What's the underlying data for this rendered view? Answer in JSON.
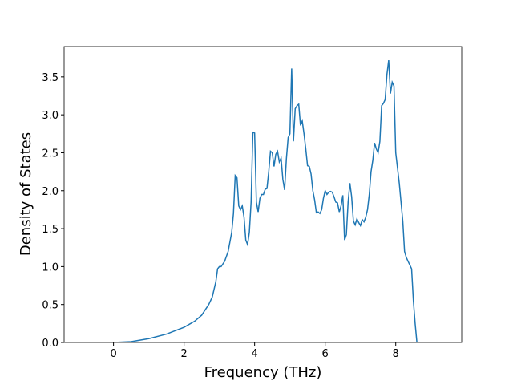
{
  "chart_data": {
    "type": "line",
    "xlabel": "Frequency (THz)",
    "ylabel": "Density of States",
    "x": [
      -0.89,
      0,
      0.5,
      1.0,
      1.5,
      2.0,
      2.3,
      2.5,
      2.7,
      2.8,
      2.9,
      2.95,
      3.0,
      3.05,
      3.15,
      3.25,
      3.35,
      3.4,
      3.45,
      3.5,
      3.55,
      3.6,
      3.65,
      3.7,
      3.75,
      3.8,
      3.85,
      3.9,
      3.95,
      4.0,
      4.05,
      4.1,
      4.15,
      4.2,
      4.25,
      4.3,
      4.35,
      4.4,
      4.45,
      4.5,
      4.55,
      4.6,
      4.65,
      4.7,
      4.75,
      4.8,
      4.85,
      4.9,
      4.95,
      5.0,
      5.05,
      5.1,
      5.15,
      5.2,
      5.25,
      5.3,
      5.35,
      5.4,
      5.45,
      5.5,
      5.55,
      5.6,
      5.65,
      5.7,
      5.75,
      5.8,
      5.85,
      5.9,
      5.95,
      6.0,
      6.05,
      6.1,
      6.15,
      6.2,
      6.25,
      6.3,
      6.35,
      6.4,
      6.45,
      6.5,
      6.55,
      6.6,
      6.65,
      6.7,
      6.75,
      6.8,
      6.85,
      6.9,
      6.95,
      7.0,
      7.05,
      7.1,
      7.15,
      7.2,
      7.25,
      7.3,
      7.35,
      7.4,
      7.45,
      7.5,
      7.55,
      7.6,
      7.65,
      7.7,
      7.75,
      7.8,
      7.85,
      7.9,
      7.95,
      8.0,
      8.1,
      8.2,
      8.25,
      8.3,
      8.35,
      8.4,
      8.45,
      8.5,
      8.55,
      8.6,
      9.36
    ],
    "series": [
      {
        "color": "#1f77b4",
        "values": [
          0,
          0,
          0.01,
          0.05,
          0.11,
          0.2,
          0.28,
          0.36,
          0.5,
          0.6,
          0.8,
          0.97,
          1.0,
          1.0,
          1.07,
          1.2,
          1.45,
          1.7,
          2.2,
          2.17,
          1.8,
          1.75,
          1.8,
          1.65,
          1.35,
          1.29,
          1.45,
          1.85,
          2.77,
          2.76,
          1.85,
          1.72,
          1.9,
          1.95,
          1.95,
          2.02,
          2.03,
          2.25,
          2.52,
          2.5,
          2.32,
          2.48,
          2.52,
          2.38,
          2.43,
          2.15,
          2.01,
          2.42,
          2.7,
          2.75,
          3.61,
          2.65,
          3.08,
          3.12,
          3.14,
          2.86,
          2.92,
          2.75,
          2.55,
          2.33,
          2.32,
          2.22,
          2.0,
          1.88,
          1.71,
          1.72,
          1.7,
          1.75,
          1.9,
          2.0,
          1.95,
          1.98,
          1.99,
          1.98,
          1.92,
          1.85,
          1.84,
          1.72,
          1.8,
          1.94,
          1.35,
          1.42,
          1.85,
          2.1,
          1.92,
          1.6,
          1.55,
          1.63,
          1.58,
          1.54,
          1.62,
          1.59,
          1.65,
          1.75,
          1.95,
          2.25,
          2.4,
          2.63,
          2.55,
          2.5,
          2.65,
          3.12,
          3.15,
          3.2,
          3.53,
          3.72,
          3.28,
          3.43,
          3.38,
          2.5,
          2.1,
          1.6,
          1.2,
          1.12,
          1.07,
          1.02,
          0.97,
          0.55,
          0.25,
          0,
          0
        ]
      }
    ],
    "xlim": [
      -1.4,
      9.87
    ],
    "ylim": [
      0,
      3.9
    ],
    "xticks": [
      0,
      2,
      4,
      6,
      8
    ],
    "yticks": [
      {
        "value": 0,
        "label": "0.0"
      },
      {
        "value": 0.5,
        "label": "0.5"
      },
      {
        "value": 1,
        "label": "1.0"
      },
      {
        "value": 1.5,
        "label": "1.5"
      },
      {
        "value": 2,
        "label": "2.0"
      },
      {
        "value": 2.5,
        "label": "2.5"
      },
      {
        "value": 3,
        "label": "3.0"
      },
      {
        "value": 3.5,
        "label": "3.5"
      }
    ]
  }
}
